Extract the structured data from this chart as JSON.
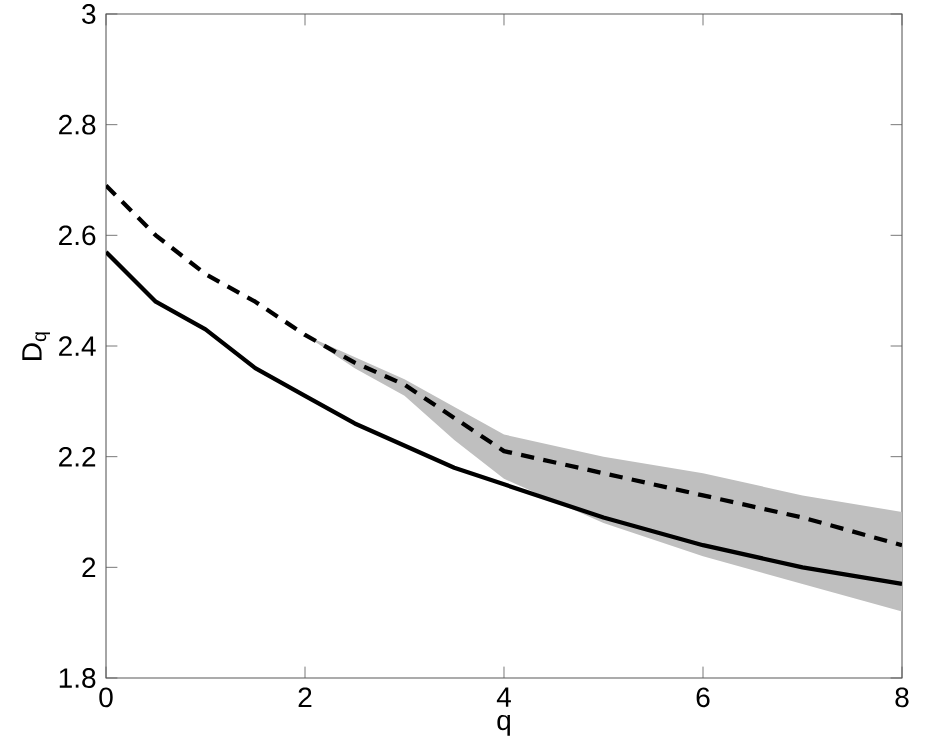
{
  "chart_data": {
    "type": "line",
    "xlabel": "q",
    "ylabel": "D$_{q}$",
    "xlim": [
      0,
      8
    ],
    "ylim": [
      1.8,
      3
    ],
    "xticks": [
      0,
      2,
      4,
      6,
      8
    ],
    "yticks": [
      1.8,
      2,
      2.2,
      2.4,
      2.6,
      2.8,
      3
    ],
    "series": [
      {
        "color": "#000000",
        "line_style": "solid",
        "x": [
          0,
          0.5,
          1,
          1.5,
          2,
          2.5,
          3,
          3.5,
          4,
          5,
          6,
          7,
          8
        ],
        "values": [
          2.57,
          2.48,
          2.43,
          2.36,
          2.31,
          2.26,
          2.22,
          2.18,
          2.15,
          2.09,
          2.04,
          2.0,
          1.97
        ]
      },
      {
        "color": "#000000",
        "line_style": "dashed",
        "x": [
          0,
          0.5,
          1,
          1.5,
          2,
          2.5,
          3,
          3.5,
          4,
          5,
          6,
          7,
          8
        ],
        "values": [
          2.69,
          2.6,
          2.53,
          2.48,
          2.42,
          2.37,
          2.33,
          2.27,
          2.21,
          2.17,
          2.13,
          2.09,
          2.04
        ],
        "lower": [
          2.69,
          2.6,
          2.53,
          2.48,
          2.42,
          2.36,
          2.31,
          2.23,
          2.16,
          2.08,
          2.02,
          1.97,
          1.92
        ],
        "upper": [
          2.69,
          2.6,
          2.53,
          2.48,
          2.42,
          2.38,
          2.34,
          2.29,
          2.24,
          2.2,
          2.17,
          2.13,
          2.1
        ]
      }
    ]
  }
}
